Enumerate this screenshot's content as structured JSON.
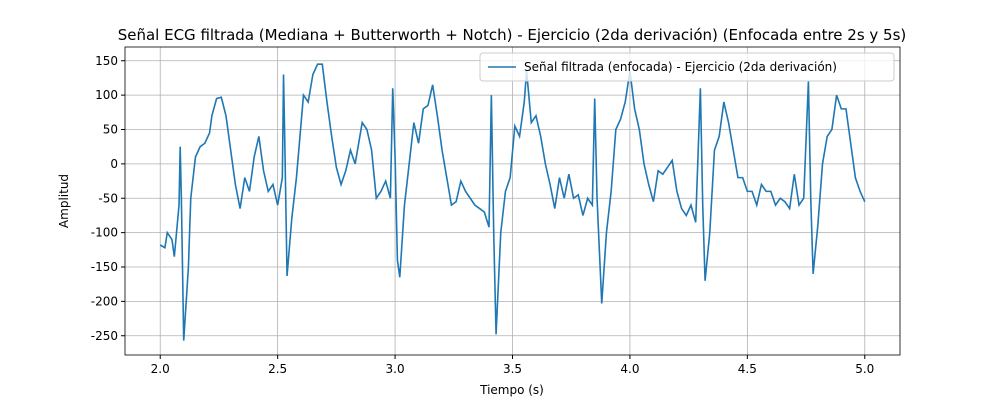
{
  "chart_data": {
    "type": "line",
    "title": "Señal ECG filtrada (Mediana + Butterworth + Notch) - Ejercicio (2da derivación) (Enfocada entre 2s y 5s)",
    "xlabel": "Tiempo (s)",
    "ylabel": "Amplitud",
    "x": [
      2.0,
      2.02,
      2.03,
      2.05,
      2.06,
      2.08,
      2.085,
      2.09,
      2.1,
      2.12,
      2.13,
      2.15,
      2.17,
      2.19,
      2.21,
      2.22,
      2.24,
      2.26,
      2.28,
      2.3,
      2.32,
      2.34,
      2.36,
      2.38,
      2.4,
      2.42,
      2.44,
      2.46,
      2.48,
      2.5,
      2.52,
      2.525,
      2.53,
      2.54,
      2.56,
      2.58,
      2.6,
      2.61,
      2.63,
      2.65,
      2.67,
      2.69,
      2.71,
      2.73,
      2.75,
      2.77,
      2.79,
      2.81,
      2.83,
      2.85,
      2.86,
      2.88,
      2.9,
      2.92,
      2.94,
      2.96,
      2.98,
      2.99,
      3.0,
      3.01,
      3.02,
      3.04,
      3.06,
      3.08,
      3.1,
      3.12,
      3.14,
      3.16,
      3.18,
      3.2,
      3.22,
      3.24,
      3.26,
      3.28,
      3.3,
      3.32,
      3.34,
      3.36,
      3.38,
      3.4,
      3.41,
      3.42,
      3.43,
      3.45,
      3.47,
      3.49,
      3.51,
      3.53,
      3.55,
      3.56,
      3.58,
      3.6,
      3.62,
      3.64,
      3.66,
      3.68,
      3.7,
      3.72,
      3.74,
      3.76,
      3.78,
      3.8,
      3.82,
      3.84,
      3.85,
      3.86,
      3.88,
      3.9,
      3.92,
      3.94,
      3.96,
      3.98,
      4.0,
      4.02,
      4.04,
      4.06,
      4.08,
      4.1,
      4.12,
      4.14,
      4.16,
      4.18,
      4.2,
      4.22,
      4.24,
      4.26,
      4.28,
      4.3,
      4.31,
      4.32,
      4.34,
      4.36,
      4.38,
      4.4,
      4.42,
      4.44,
      4.46,
      4.48,
      4.5,
      4.52,
      4.54,
      4.56,
      4.58,
      4.6,
      4.62,
      4.64,
      4.66,
      4.68,
      4.7,
      4.72,
      4.74,
      4.76,
      4.77,
      4.78,
      4.8,
      4.82,
      4.84,
      4.86,
      4.88,
      4.9,
      4.92,
      4.94,
      4.96,
      4.98,
      5.0
    ],
    "series": [
      {
        "name": "Señal filtrada (enfocada) - Ejercicio (2da derivación)",
        "color": "#1f77b4",
        "values": [
          -118,
          -122,
          -100,
          -110,
          -135,
          -60,
          25,
          -50,
          -257,
          -150,
          -50,
          10,
          25,
          30,
          45,
          70,
          95,
          97,
          70,
          20,
          -30,
          -65,
          -20,
          -40,
          10,
          40,
          -10,
          -40,
          -30,
          -60,
          -20,
          130,
          40,
          -163,
          -80,
          -20,
          60,
          100,
          90,
          130,
          145,
          145,
          90,
          40,
          -5,
          -30,
          -10,
          20,
          0,
          40,
          60,
          50,
          20,
          -50,
          -40,
          -25,
          -50,
          110,
          10,
          -140,
          -165,
          -60,
          0,
          60,
          30,
          80,
          85,
          115,
          70,
          20,
          -20,
          -60,
          -55,
          -25,
          -40,
          -50,
          -60,
          -65,
          -70,
          -92,
          100,
          -100,
          -248,
          -100,
          -40,
          -20,
          55,
          40,
          90,
          135,
          60,
          70,
          40,
          0,
          -30,
          -65,
          -20,
          -50,
          -15,
          -50,
          -45,
          -75,
          -50,
          -60,
          95,
          -50,
          -203,
          -100,
          -40,
          50,
          65,
          90,
          135,
          80,
          50,
          0,
          -30,
          -55,
          -10,
          -15,
          -5,
          5,
          -40,
          -65,
          -75,
          -60,
          -85,
          110,
          -60,
          -170,
          -100,
          20,
          40,
          90,
          60,
          20,
          -20,
          -20,
          -40,
          -40,
          -60,
          -30,
          -40,
          -40,
          -60,
          -50,
          -55,
          -65,
          -15,
          -60,
          -50,
          120,
          -50,
          -160,
          -90,
          0,
          40,
          50,
          100,
          80,
          80,
          30,
          -20,
          -40,
          -55
        ]
      }
    ],
    "xlim": [
      1.85,
      5.15
    ],
    "ylim": [
      -278,
      170
    ],
    "xticks": [
      {
        "value": 2,
        "label": "2.0"
      },
      {
        "value": 2.5,
        "label": "2.5"
      },
      {
        "value": 3,
        "label": "3.0"
      },
      {
        "value": 3.5,
        "label": "3.5"
      },
      {
        "value": 4,
        "label": "4.0"
      },
      {
        "value": 4.5,
        "label": "4.5"
      },
      {
        "value": 5,
        "label": "5.0"
      }
    ],
    "yticks": [
      -250,
      -200,
      -150,
      -100,
      -50,
      0,
      50,
      100,
      150
    ],
    "grid": true,
    "legend": "upper right"
  }
}
